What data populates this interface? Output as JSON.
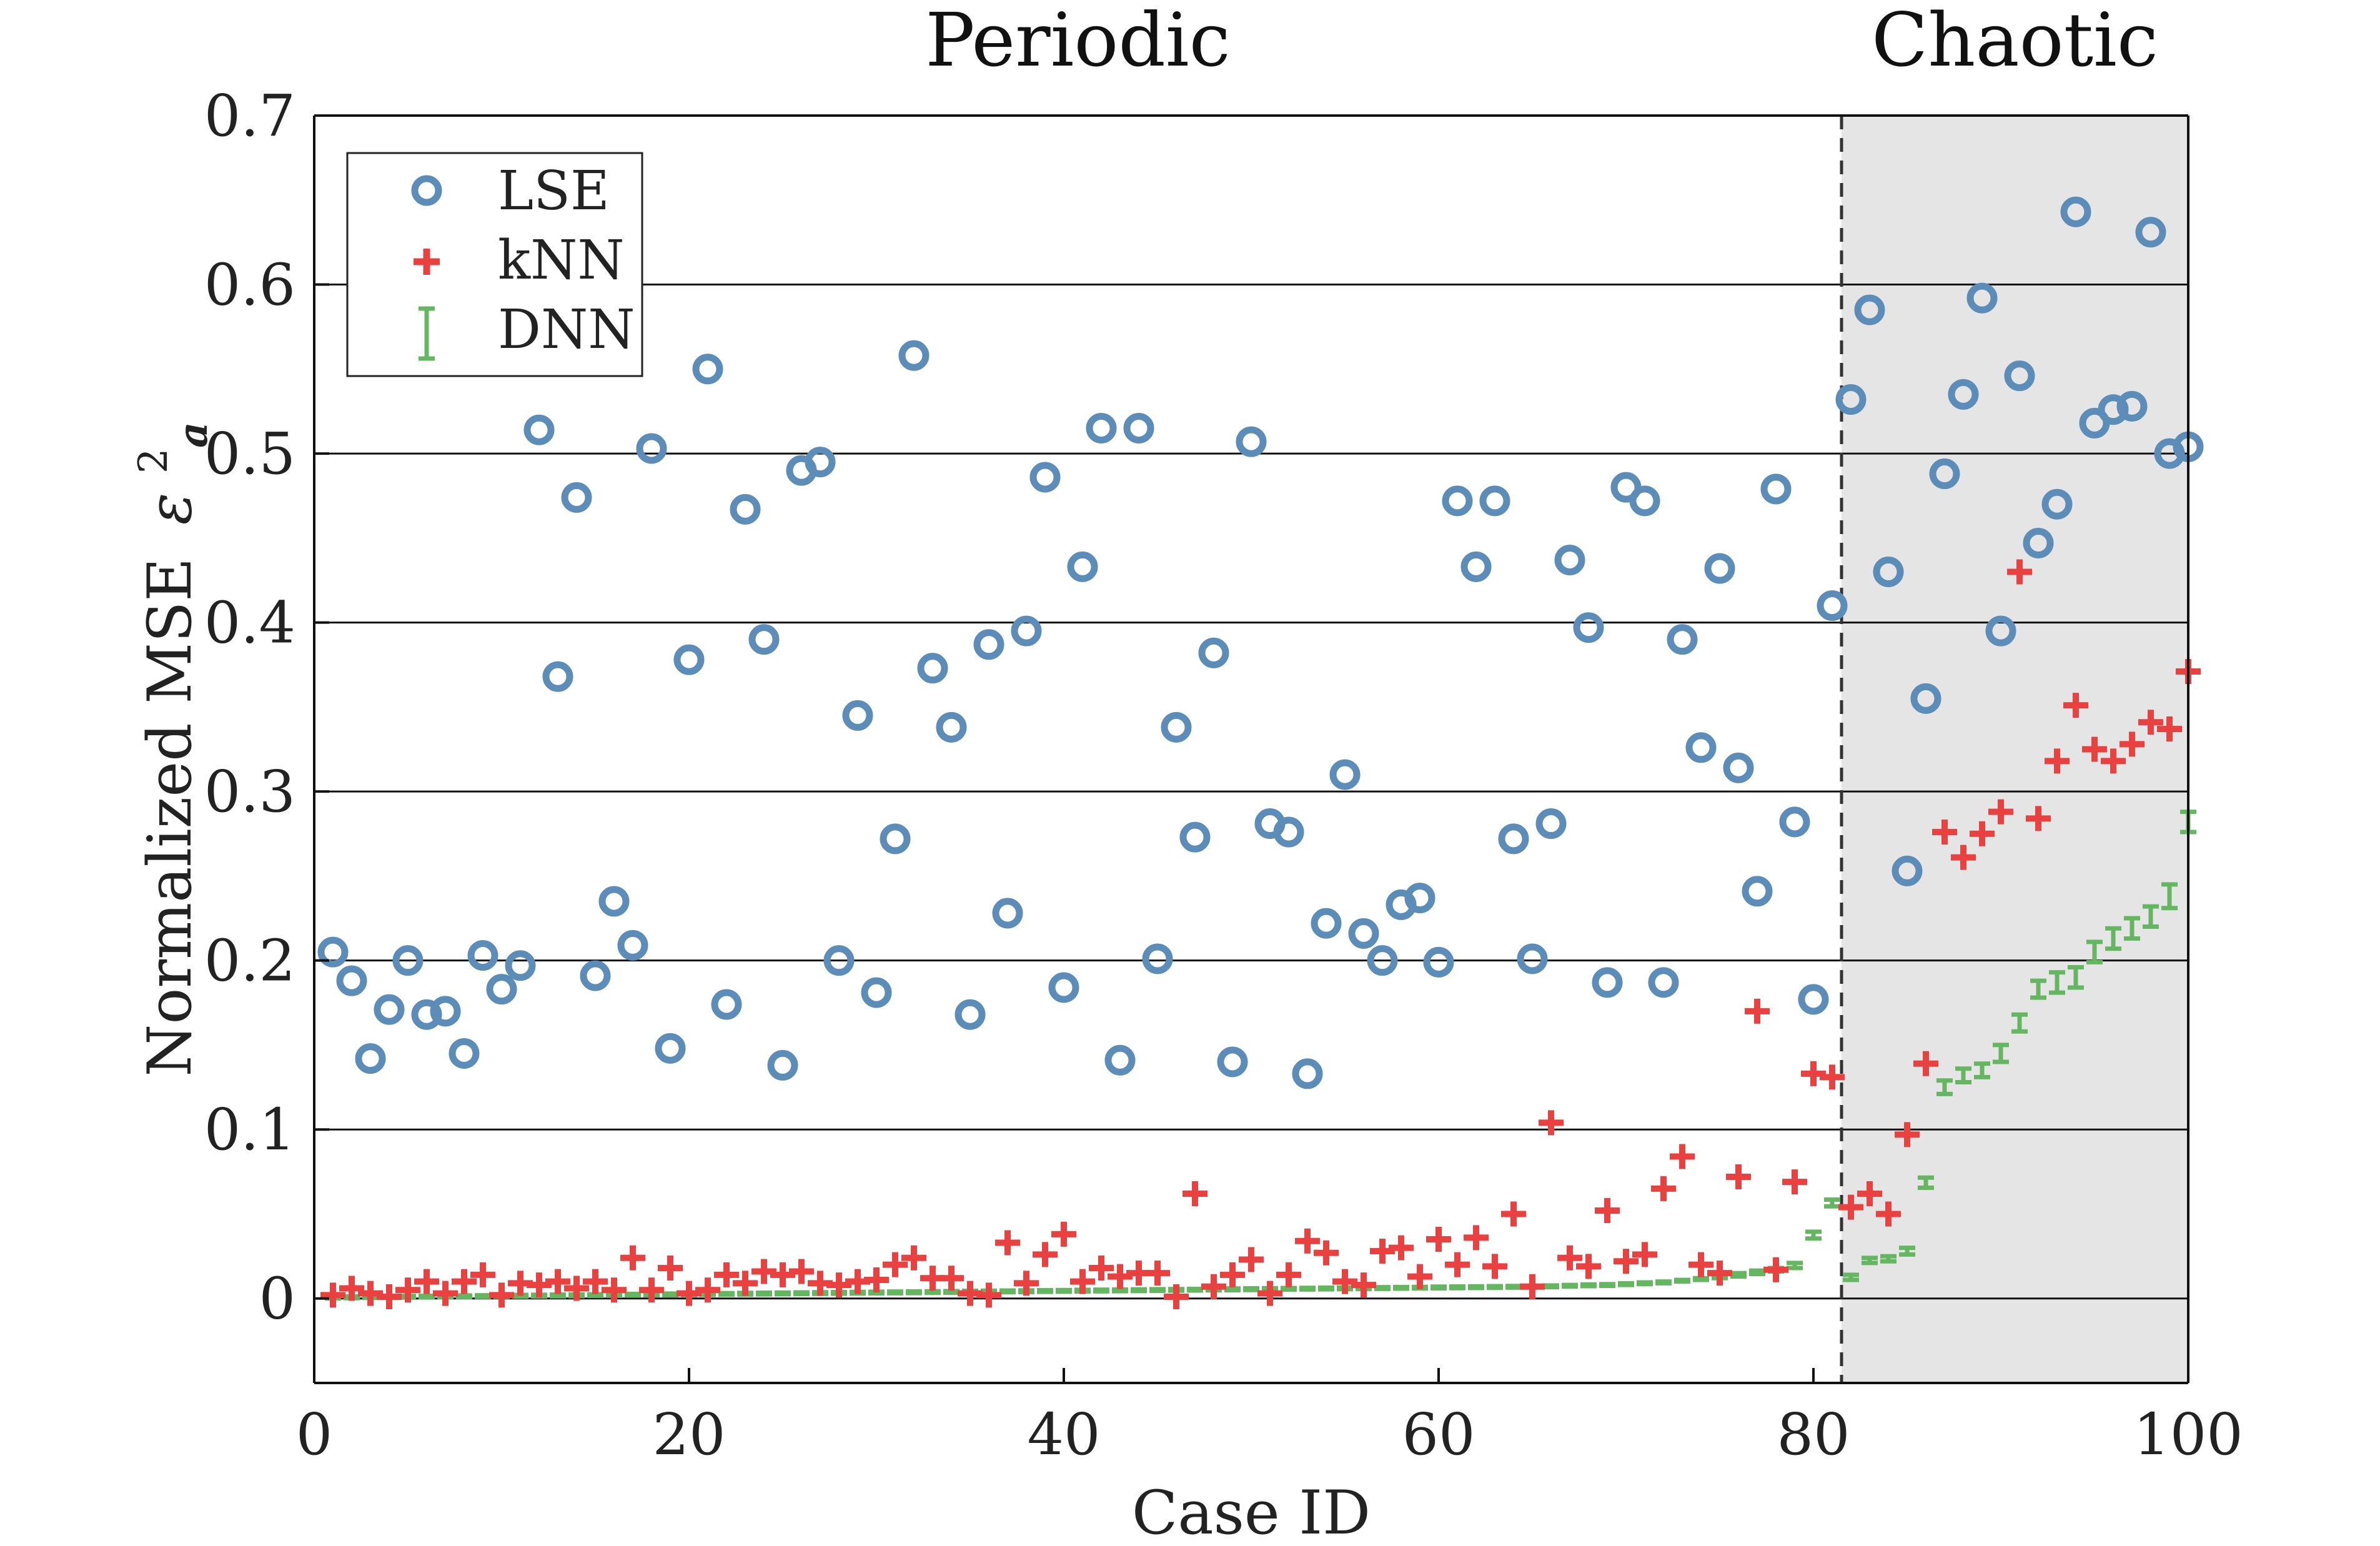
{
  "chart_data": {
    "type": "scatter",
    "region_labels": [
      "Periodic",
      "Chaotic"
    ],
    "xlabel": "Case ID",
    "ylabel": "Normalized MSE",
    "ylabel_symbol": "ε",
    "ylabel_sup": "2",
    "ylabel_sub": "a",
    "xlim": [
      0,
      100
    ],
    "ylim": [
      -0.05,
      0.7
    ],
    "xticks": [
      0,
      20,
      40,
      60,
      80,
      100
    ],
    "xtick_labels": [
      "0",
      "20",
      "40",
      "60",
      "80",
      "100"
    ],
    "yticks": [
      0,
      0.1,
      0.2,
      0.3,
      0.4,
      0.5,
      0.6,
      0.7
    ],
    "ytick_labels": [
      "0",
      "0.1",
      "0.2",
      "0.3",
      "0.4",
      "0.5",
      "0.6",
      "0.7"
    ],
    "grid": "horizontal",
    "legend_position": "top-left",
    "chaotic_region_start": 81.5,
    "chaotic_region_color": "#e5e5e5",
    "x": [
      1,
      2,
      3,
      4,
      5,
      6,
      7,
      8,
      9,
      10,
      11,
      12,
      13,
      14,
      15,
      16,
      17,
      18,
      19,
      20,
      21,
      22,
      23,
      24,
      25,
      26,
      27,
      28,
      29,
      30,
      31,
      32,
      33,
      34,
      35,
      36,
      37,
      38,
      39,
      40,
      41,
      42,
      43,
      44,
      45,
      46,
      47,
      48,
      49,
      50,
      51,
      52,
      53,
      54,
      55,
      56,
      57,
      58,
      59,
      60,
      61,
      62,
      63,
      64,
      65,
      66,
      67,
      68,
      69,
      70,
      71,
      72,
      73,
      74,
      75,
      76,
      77,
      78,
      79,
      80,
      81,
      82,
      83,
      84,
      85,
      86,
      87,
      88,
      89,
      90,
      91,
      92,
      93,
      94,
      95,
      96,
      97,
      98,
      99,
      100
    ],
    "series": [
      {
        "name": "LSE",
        "color": "#5b8db8",
        "marker": "circle",
        "values": [
          0.205,
          0.188,
          0.142,
          0.171,
          0.2,
          0.168,
          0.17,
          0.145,
          0.203,
          0.183,
          0.197,
          0.514,
          0.368,
          0.474,
          0.191,
          0.235,
          0.209,
          0.503,
          0.148,
          0.378,
          0.55,
          0.174,
          0.467,
          0.39,
          0.138,
          0.49,
          0.495,
          0.2,
          0.345,
          0.181,
          0.272,
          0.558,
          0.373,
          0.338,
          0.168,
          0.387,
          0.228,
          0.395,
          0.486,
          0.184,
          0.433,
          0.515,
          0.141,
          0.515,
          0.201,
          0.338,
          0.273,
          0.382,
          0.14,
          0.507,
          0.281,
          0.276,
          0.133,
          0.222,
          0.31,
          0.216,
          0.2,
          0.233,
          0.237,
          0.199,
          0.472,
          0.433,
          0.472,
          0.272,
          0.201,
          0.281,
          0.437,
          0.397,
          0.187,
          0.48,
          0.472,
          0.187,
          0.39,
          0.326,
          0.432,
          0.314,
          0.241,
          0.479,
          0.282,
          0.177,
          0.41,
          0.532,
          0.585,
          0.43,
          0.253,
          0.355,
          0.488,
          0.535,
          0.592,
          0.395,
          0.546,
          0.447,
          0.47,
          0.643,
          0.518,
          0.526,
          0.528,
          0.631,
          0.5,
          0.504
        ]
      },
      {
        "name": "kNN",
        "color": "#e8413f",
        "marker": "plus",
        "values": [
          0.002,
          0.006,
          0.003,
          0.001,
          0.005,
          0.01,
          0.003,
          0.01,
          0.014,
          0.002,
          0.009,
          0.008,
          0.01,
          0.006,
          0.01,
          0.005,
          0.024,
          0.005,
          0.018,
          0.003,
          0.005,
          0.014,
          0.009,
          0.016,
          0.014,
          0.016,
          0.009,
          0.008,
          0.01,
          0.011,
          0.02,
          0.024,
          0.012,
          0.012,
          0.003,
          0.002,
          0.033,
          0.009,
          0.026,
          0.038,
          0.01,
          0.018,
          0.013,
          0.015,
          0.015,
          0.001,
          0.062,
          0.007,
          0.014,
          0.023,
          0.003,
          0.014,
          0.034,
          0.027,
          0.01,
          0.008,
          0.028,
          0.03,
          0.013,
          0.035,
          0.02,
          0.036,
          0.019,
          0.05,
          0.007,
          0.104,
          0.024,
          0.019,
          0.052,
          0.022,
          0.026,
          0.065,
          0.084,
          0.02,
          0.015,
          0.072,
          0.17,
          0.017,
          0.069,
          0.133,
          0.131,
          0.054,
          0.062,
          0.05,
          0.097,
          0.139,
          0.276,
          0.261,
          0.275,
          0.288,
          0.43,
          0.284,
          0.318,
          0.351,
          0.325,
          0.318,
          0.328,
          0.341,
          0.337,
          0.371
        ]
      },
      {
        "name": "DNN",
        "color": "#64b760",
        "marker": "errorbar",
        "values": [
          0.0005,
          0.0007,
          0.0008,
          0.0009,
          0.001,
          0.0011,
          0.0012,
          0.0013,
          0.0014,
          0.0015,
          0.0016,
          0.0017,
          0.0018,
          0.0019,
          0.002,
          0.0021,
          0.0022,
          0.0023,
          0.0024,
          0.0025,
          0.0026,
          0.0027,
          0.0028,
          0.0029,
          0.003,
          0.0031,
          0.0032,
          0.0033,
          0.0034,
          0.0035,
          0.0036,
          0.0037,
          0.0038,
          0.0039,
          0.004,
          0.0041,
          0.0042,
          0.0043,
          0.0044,
          0.0045,
          0.0046,
          0.0047,
          0.0048,
          0.0049,
          0.005,
          0.0051,
          0.0052,
          0.0053,
          0.0054,
          0.0055,
          0.0056,
          0.0057,
          0.0058,
          0.0059,
          0.006,
          0.0061,
          0.0062,
          0.0063,
          0.0064,
          0.0065,
          0.0066,
          0.0067,
          0.0068,
          0.0069,
          0.007,
          0.0072,
          0.0075,
          0.0078,
          0.008,
          0.0085,
          0.009,
          0.0095,
          0.0105,
          0.0115,
          0.0125,
          0.014,
          0.0155,
          0.017,
          0.0195,
          0.0375,
          0.0565,
          0.0125,
          0.0225,
          0.0235,
          0.028,
          0.0685,
          0.125,
          0.132,
          0.135,
          0.145,
          0.163,
          0.183,
          0.187,
          0.19,
          0.205,
          0.213,
          0.219,
          0.226,
          0.238,
          0.282
        ],
        "errors": [
          0.0005,
          0.0005,
          0.0005,
          0.0005,
          0.0005,
          0.0005,
          0.0005,
          0.0005,
          0.0005,
          0.0005,
          0.0005,
          0.0005,
          0.0005,
          0.0005,
          0.0005,
          0.0005,
          0.0005,
          0.0005,
          0.0005,
          0.0005,
          0.0005,
          0.0005,
          0.0005,
          0.0005,
          0.0005,
          0.0005,
          0.0005,
          0.0005,
          0.0005,
          0.0005,
          0.0005,
          0.0005,
          0.0005,
          0.0005,
          0.0005,
          0.0005,
          0.0005,
          0.0005,
          0.0005,
          0.0005,
          0.0005,
          0.0005,
          0.0005,
          0.0005,
          0.0005,
          0.0005,
          0.0005,
          0.0005,
          0.0005,
          0.0005,
          0.0005,
          0.0005,
          0.0005,
          0.0005,
          0.0005,
          0.0005,
          0.0005,
          0.0005,
          0.0005,
          0.0005,
          0.0005,
          0.0005,
          0.0005,
          0.0005,
          0.0005,
          0.0005,
          0.0005,
          0.0005,
          0.0005,
          0.0005,
          0.0005,
          0.0005,
          0.0005,
          0.0005,
          0.0005,
          0.001,
          0.001,
          0.001,
          0.0015,
          0.002,
          0.002,
          0.0015,
          0.0015,
          0.0015,
          0.002,
          0.003,
          0.004,
          0.004,
          0.004,
          0.005,
          0.005,
          0.005,
          0.006,
          0.006,
          0.006,
          0.006,
          0.006,
          0.006,
          0.007,
          0.006
        ]
      }
    ]
  }
}
